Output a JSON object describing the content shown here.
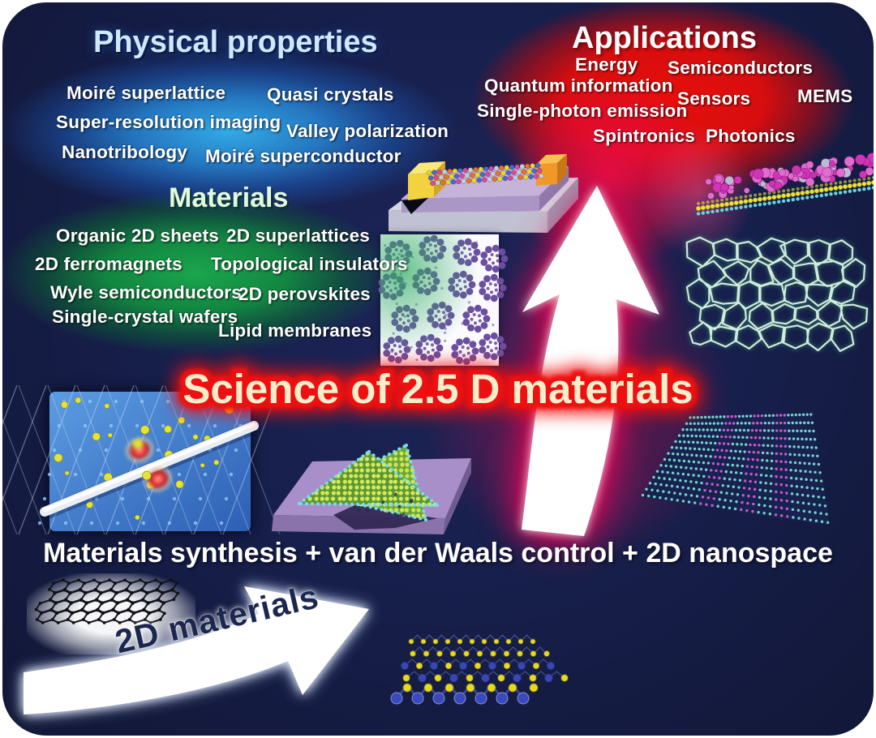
{
  "figure": {
    "title": "Science of 2.5 D materials",
    "equation": "Materials synthesis + van der Waals control + 2D nanospace",
    "arrow_label": "2D materials"
  },
  "physical": {
    "heading": "Physical properties",
    "items": [
      "Moiré superlattice",
      "Quasi crystals",
      "Super-resolution imaging",
      "Valley polarization",
      "Nanotribology",
      "Moiré superconductor"
    ]
  },
  "applications": {
    "heading": "Applications",
    "items": [
      "Energy",
      "Semiconductors",
      "Quantum information",
      "Sensors",
      "MEMS",
      "Single-photon emission",
      "Spintronics",
      "Photonics"
    ]
  },
  "materials": {
    "heading": "Materials",
    "items": [
      "Organic 2D sheets",
      "2D superlattices",
      "2D ferromagnets",
      "Topological insulators",
      "Wyle semiconductors",
      "2D perovskites",
      "Single-crystal wafers",
      "Lipid membranes"
    ]
  },
  "colors": {
    "background": "#171f4c",
    "physical-glow": "#2da9e6",
    "applications-glow": "#e80f0d",
    "materials-glow": "#18a84a",
    "arrow-glow": "#e8124a",
    "title-fill": "#f8eecb",
    "title-glow": "#ee1111",
    "frame": "#ffffff"
  },
  "graphics": {
    "device": "2.5d-device-illustration",
    "quasicrystal": "quasicrystal-pattern-illustration",
    "defect": "nanotube-on-lattice-illustration",
    "bilayer": "twisted-bilayer-illustration",
    "molecular_layer": "molecular-layer-on-2d-sheet-illustration",
    "network": "amorphous-network-illustration",
    "stripes": "striped-alloy-lattice-illustration",
    "graphene": "graphene-sheet-illustration",
    "crystal": "tmd-crystal-illustration",
    "up_arrow": "big-up-arrow",
    "rising_arrow": "2d-materials-arrow"
  }
}
